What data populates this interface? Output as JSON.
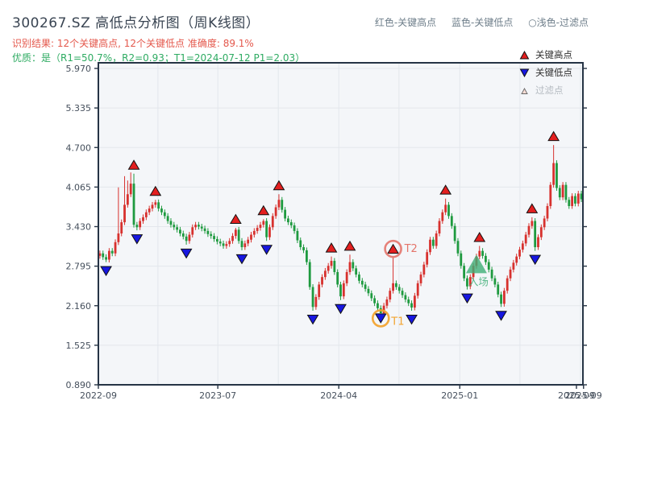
{
  "header": {
    "title": "300267.SZ 高低点分析图（周K线图）",
    "result_line": "识别结果: 12个关键高点, 12个关键低点  准确度: 89.1%",
    "quality_line": "优质：是（R1=50.7%，R2=0.93；T1=2024-07-12 P1=2.03）",
    "note": [
      "红色-关键高点",
      "蓝色-关键低点",
      "○浅色-过滤点"
    ]
  },
  "legend": {
    "items": [
      {
        "label": "关键高点",
        "type": "key-high",
        "color": "#e31f1f"
      },
      {
        "label": "关键低点",
        "type": "key-low",
        "color": "#1717e0"
      },
      {
        "label": "过滤点",
        "type": "filtered",
        "color": "#f9ddd5"
      }
    ]
  },
  "colors": {
    "up_candle": "#d7312e",
    "down_candle": "#1e9a3f",
    "high_marker": "#e31f1f",
    "low_marker": "#1717e0",
    "marker_edge": "#111111",
    "entry": "#3faf77",
    "t1_ring": "#f2a431",
    "t2_ring": "#e4746a",
    "plot_bg": "#f4f6f9",
    "grid": "#e3e7ec",
    "spine": "#263445",
    "tick_label": "#454f5c"
  },
  "chart_data": {
    "type": "candlestick",
    "symbol": "300267.SZ",
    "period": "weekly",
    "title": "300267.SZ 高低点分析图（周K线图）",
    "grid": "on",
    "ylim": [
      0.89,
      6.06
    ],
    "y_ticks": [
      {
        "label": "5.970",
        "value": 5.97
      },
      {
        "label": "5.335",
        "value": 5.335
      },
      {
        "label": "4.700",
        "value": 4.7
      },
      {
        "label": "4.065",
        "value": 4.065
      },
      {
        "label": "3.430",
        "value": 3.43
      },
      {
        "label": "2.795",
        "value": 2.795
      },
      {
        "label": "2.160",
        "value": 2.16
      },
      {
        "label": "1.525",
        "value": 1.525
      },
      {
        "label": "0.890",
        "value": 0.89
      }
    ],
    "x_ticks": [
      {
        "label": "2022-09",
        "week": 0
      },
      {
        "label": "2023-07",
        "week": 38.7
      },
      {
        "label": "2024-04",
        "week": 77.9
      },
      {
        "label": "2025-01",
        "week": 117.1
      },
      {
        "label": "2025-09",
        "week": 154.9
      },
      {
        "label": "2025-09",
        "week": 157.2
      }
    ],
    "grid_weeks": [
      19.3,
      38.7,
      58.3,
      77.9,
      97.4,
      117.1,
      136.6,
      156.2
    ],
    "closes": [
      3.0,
      2.94,
      2.9,
      3.04,
      3.0,
      3.18,
      3.32,
      3.5,
      3.78,
      3.95,
      4.12,
      3.46,
      3.42,
      3.52,
      3.58,
      3.66,
      3.72,
      3.78,
      3.82,
      3.72,
      3.66,
      3.6,
      3.52,
      3.46,
      3.42,
      3.38,
      3.32,
      3.27,
      3.2,
      3.3,
      3.42,
      3.46,
      3.43,
      3.4,
      3.36,
      3.31,
      3.28,
      3.23,
      3.19,
      3.16,
      3.12,
      3.15,
      3.2,
      3.28,
      3.38,
      3.2,
      3.1,
      3.16,
      3.22,
      3.3,
      3.36,
      3.41,
      3.46,
      3.52,
      3.26,
      3.42,
      3.6,
      3.74,
      3.86,
      3.7,
      3.56,
      3.5,
      3.45,
      3.36,
      3.21,
      3.1,
      3.05,
      2.86,
      2.46,
      2.14,
      2.3,
      2.5,
      2.62,
      2.72,
      2.8,
      2.88,
      2.7,
      2.5,
      2.31,
      2.52,
      2.7,
      2.86,
      2.76,
      2.66,
      2.56,
      2.5,
      2.43,
      2.36,
      2.28,
      2.2,
      2.12,
      2.04,
      2.16,
      2.26,
      2.4,
      2.52,
      2.46,
      2.4,
      2.33,
      2.26,
      2.2,
      2.13,
      2.32,
      2.52,
      2.66,
      2.82,
      3.02,
      3.22,
      3.12,
      3.32,
      3.52,
      3.66,
      3.78,
      3.6,
      3.44,
      3.2,
      3.0,
      2.8,
      2.6,
      2.47,
      2.62,
      2.8,
      2.95,
      3.04,
      2.96,
      2.86,
      2.74,
      2.6,
      2.5,
      2.34,
      2.19,
      2.4,
      2.6,
      2.74,
      2.85,
      2.95,
      3.06,
      3.16,
      3.3,
      3.44,
      3.52,
      3.1,
      3.26,
      3.42,
      3.56,
      3.76,
      4.1,
      4.45,
      4.05,
      3.9,
      4.1,
      3.86,
      3.76,
      3.92,
      3.8,
      3.96,
      3.87
    ],
    "wick_high_overrides": {
      "6": 4.06,
      "8": 4.24,
      "9": 4.17,
      "10": 4.3,
      "11": 4.28,
      "18": 3.86,
      "44": 3.41,
      "53": 3.55,
      "58": 3.95,
      "75": 2.95,
      "81": 2.98,
      "95": 2.93,
      "112": 3.88,
      "123": 3.12,
      "140": 3.58,
      "147": 4.74
    },
    "wick_low_overrides": {
      "2": 2.86,
      "12": 3.37,
      "28": 3.14,
      "46": 3.05,
      "54": 3.2,
      "69": 2.08,
      "78": 2.25,
      "91": 2.1,
      "101": 2.08,
      "119": 2.42,
      "130": 2.14,
      "141": 3.04
    },
    "key_highs": {
      "count": 12,
      "weeks": [
        11,
        18,
        44,
        53,
        58,
        75,
        81,
        95,
        112,
        123,
        140,
        147
      ]
    },
    "key_lows": {
      "count": 12,
      "weeks": [
        2,
        12,
        28,
        46,
        54,
        69,
        78,
        91,
        101,
        119,
        130,
        141
      ]
    },
    "annotations": [
      {
        "label": "T1",
        "week": 91,
        "price": 2.1,
        "kind": "low-ring"
      },
      {
        "label": "T2",
        "week": 95,
        "price": 2.93,
        "kind": "high-ring"
      },
      {
        "label": "入场",
        "week": 122,
        "price": 2.98,
        "kind": "entry"
      }
    ]
  }
}
